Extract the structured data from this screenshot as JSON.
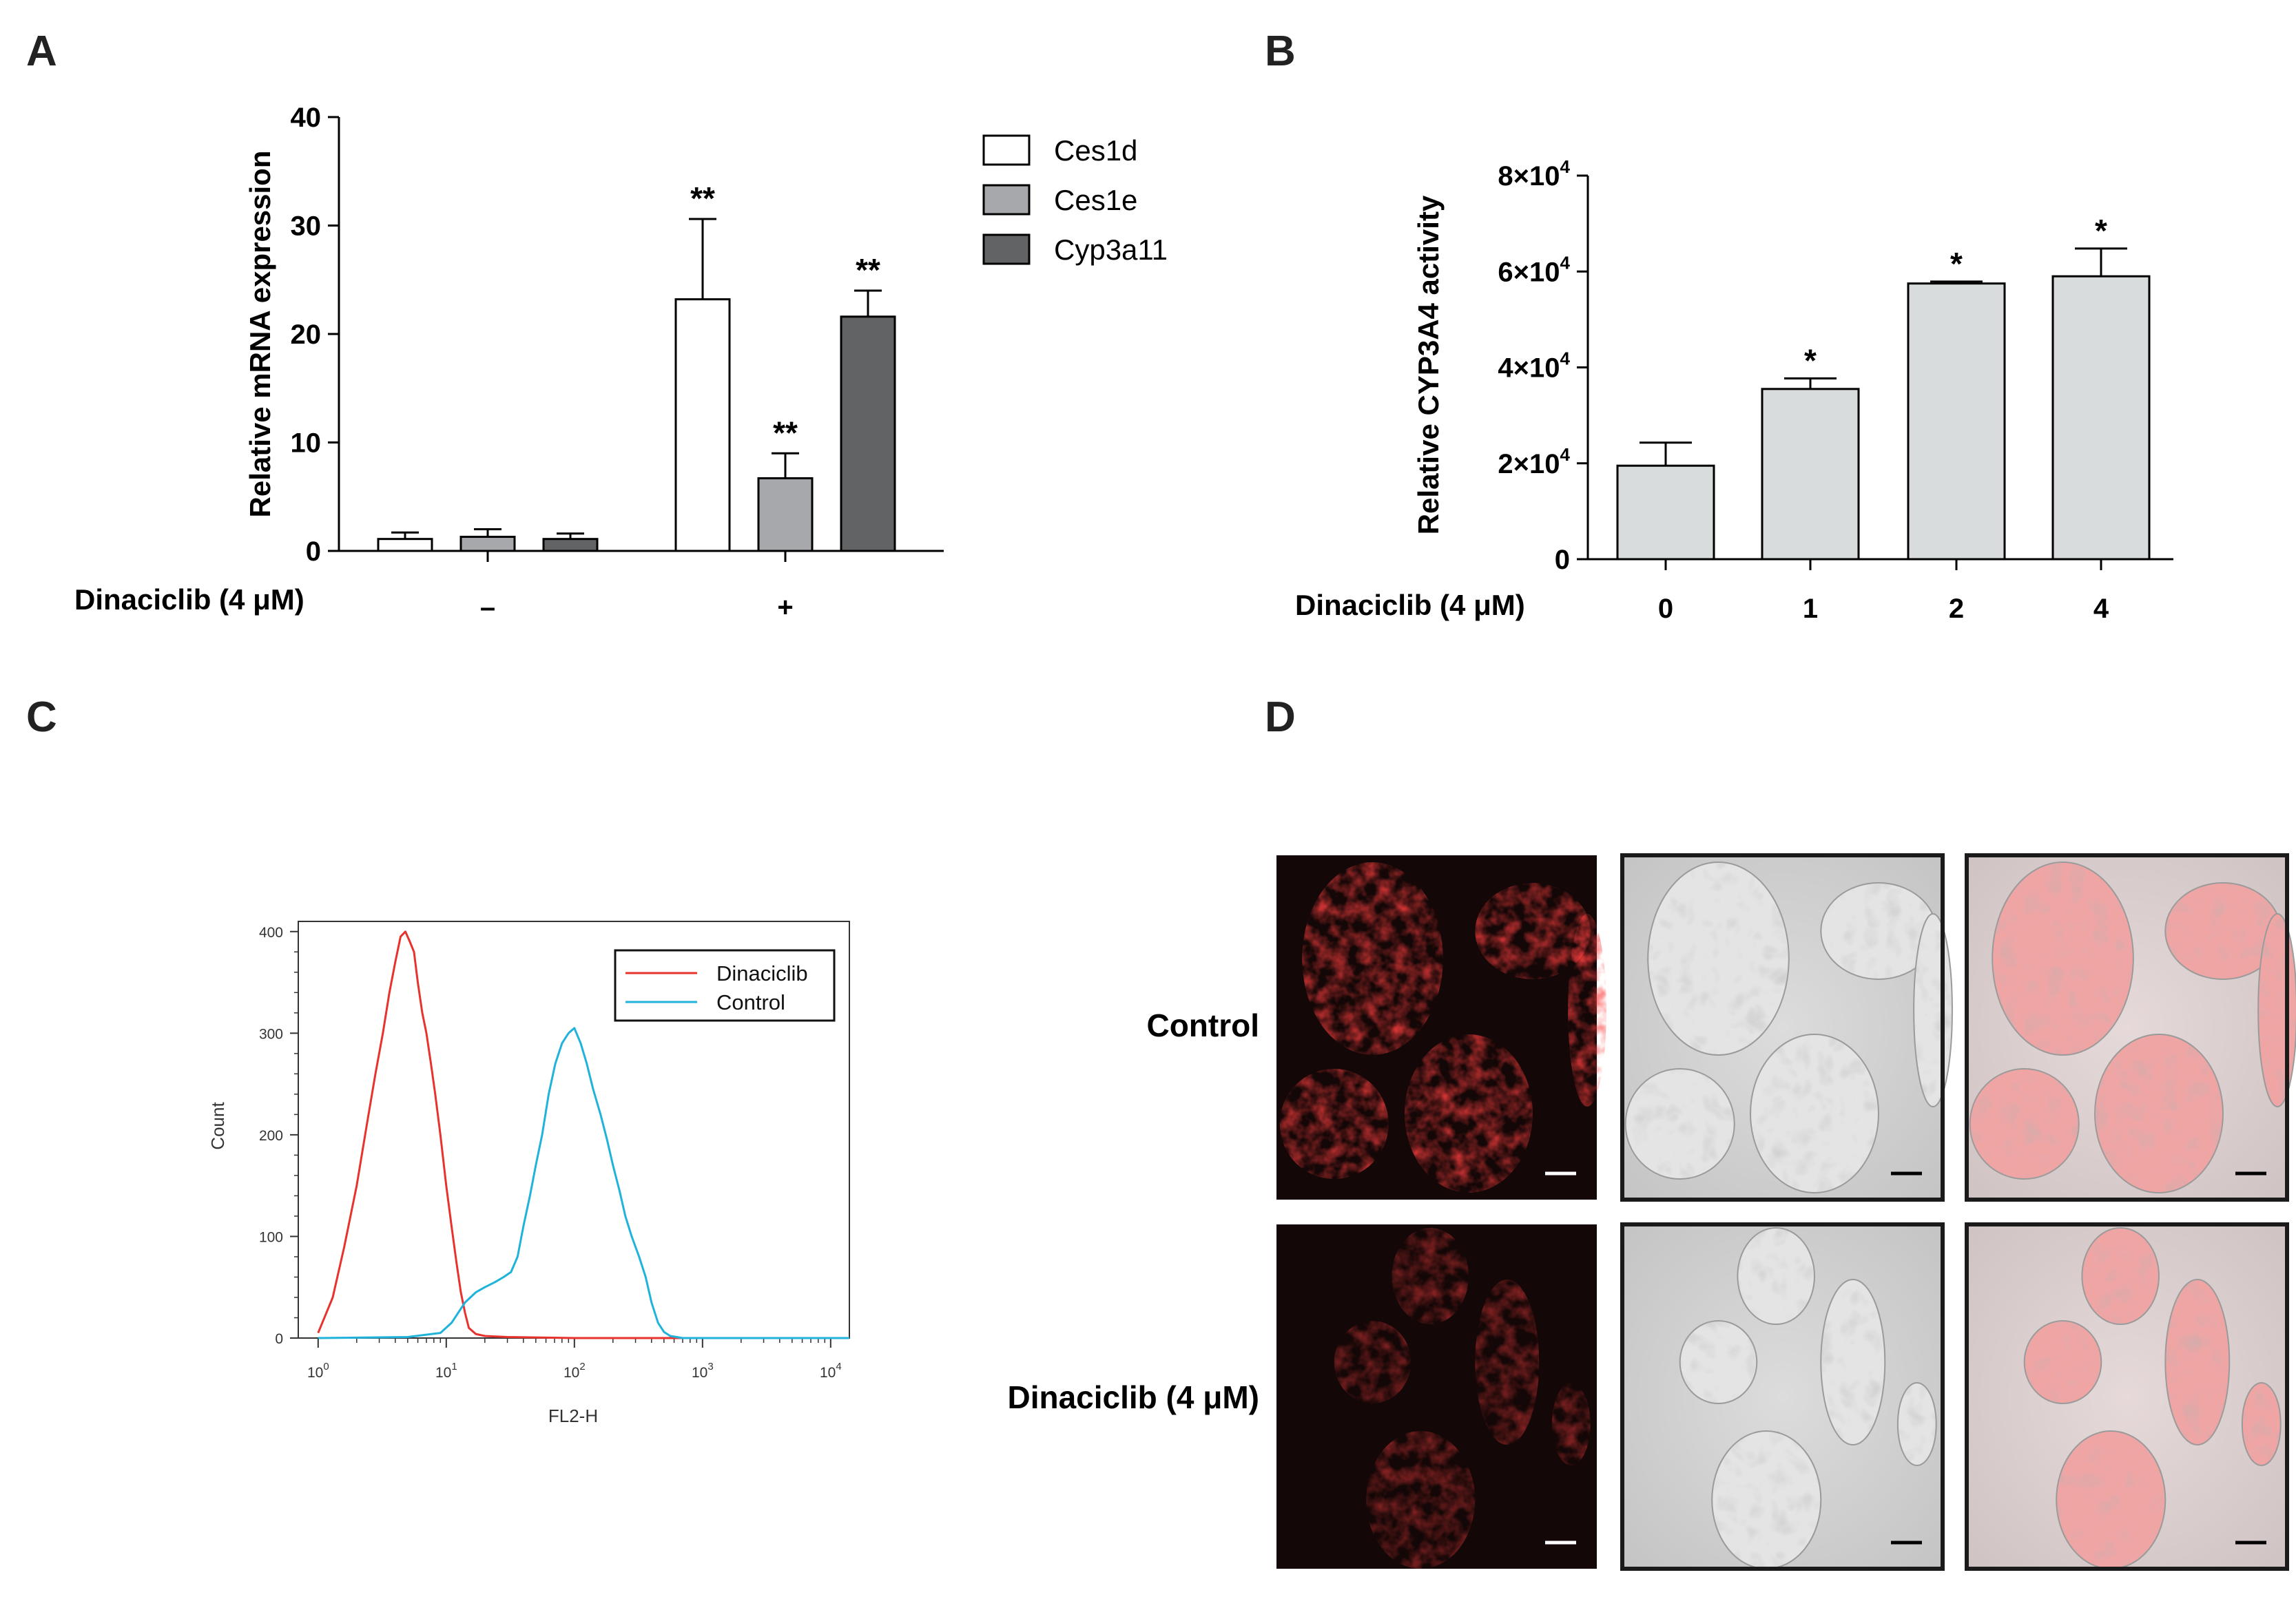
{
  "panel_labels": {
    "A": "A",
    "B": "B",
    "C": "C",
    "D": "D"
  },
  "colors": {
    "ces1d": "#ffffff",
    "ces1e": "#a6a8ab",
    "cyp3a11": "#616365",
    "cyp3a4_bar": "#d9dcdc",
    "dinaciclib_line": "#e8322e",
    "control_line": "#1fb3dc"
  },
  "chart_data": [
    {
      "id": "A",
      "type": "bar",
      "title": "",
      "ylabel": "Relative mRNA expression",
      "xlabel": "Dinaciclib (4 μM)",
      "ylim": [
        0,
        40
      ],
      "yticks": [
        "0",
        "10",
        "20",
        "30",
        "40"
      ],
      "categories": [
        "–",
        "+"
      ],
      "series": [
        {
          "name": "Ces1d",
          "values": [
            1.1,
            23.2
          ],
          "errors": [
            0.6,
            7.4
          ],
          "sig": [
            "",
            "**"
          ]
        },
        {
          "name": "Ces1e",
          "values": [
            1.3,
            6.7
          ],
          "errors": [
            0.7,
            2.3
          ],
          "sig": [
            "",
            "**"
          ]
        },
        {
          "name": "Cyp3a11",
          "values": [
            1.1,
            21.6
          ],
          "errors": [
            0.5,
            2.4
          ],
          "sig": [
            "",
            "**"
          ]
        }
      ],
      "legend": "right"
    },
    {
      "id": "B",
      "type": "bar",
      "title": "",
      "ylabel": "Relative  CYP3A4 activity",
      "xlabel": "Dinaciclib (4 μM)",
      "ylim": [
        0,
        80000
      ],
      "yticks": [
        {
          "v": 0,
          "base": "0",
          "exp": ""
        },
        {
          "v": 20000,
          "base": "2×10",
          "exp": "4"
        },
        {
          "v": 40000,
          "base": "4×10",
          "exp": "4"
        },
        {
          "v": 60000,
          "base": "6×10",
          "exp": "4"
        },
        {
          "v": 80000,
          "base": "8×10",
          "exp": "4"
        }
      ],
      "categories": [
        "0",
        "1",
        "2",
        "4"
      ],
      "values": [
        19500,
        35500,
        57500,
        59000
      ],
      "errors": [
        4800,
        2200,
        400,
        5800
      ],
      "sig": [
        "",
        "*",
        "*",
        "*"
      ]
    },
    {
      "id": "C",
      "type": "line",
      "title": "",
      "xlabel": "FL2-H",
      "ylabel": "Count",
      "xscale": "log",
      "xlim": [
        0.7,
        14000
      ],
      "ylim": [
        0,
        410
      ],
      "xticks": [
        {
          "v": 1,
          "base": "10",
          "exp": "0"
        },
        {
          "v": 10,
          "base": "10",
          "exp": "1"
        },
        {
          "v": 100,
          "base": "10",
          "exp": "2"
        },
        {
          "v": 1000,
          "base": "10",
          "exp": "3"
        },
        {
          "v": 10000,
          "base": "10",
          "exp": "4"
        }
      ],
      "yticks": [
        "0",
        "100",
        "200",
        "300",
        "400"
      ],
      "legend": "top-right",
      "series": [
        {
          "name": "Dinaciclib",
          "x": [
            1.0,
            1.3,
            1.6,
            2.0,
            2.4,
            2.8,
            3.2,
            3.6,
            4.0,
            4.4,
            4.8,
            5.2,
            5.6,
            6.0,
            6.5,
            7.0,
            7.6,
            8.2,
            9.0,
            10,
            11,
            12,
            13,
            14,
            15,
            17,
            20,
            30,
            100,
            1000,
            14000
          ],
          "y": [
            5,
            40,
            90,
            150,
            210,
            260,
            300,
            340,
            370,
            395,
            400,
            390,
            380,
            350,
            320,
            300,
            270,
            240,
            200,
            150,
            110,
            75,
            45,
            25,
            10,
            4,
            2,
            1,
            0,
            0,
            0
          ]
        },
        {
          "name": "Control",
          "x": [
            1,
            5,
            9,
            11,
            14,
            17,
            20,
            24,
            28,
            32,
            36,
            40,
            45,
            50,
            56,
            63,
            71,
            80,
            90,
            100,
            112,
            125,
            140,
            160,
            180,
            200,
            225,
            250,
            280,
            320,
            360,
            400,
            450,
            500,
            560,
            630,
            700,
            1000,
            14000
          ],
          "y": [
            0,
            1,
            5,
            15,
            35,
            45,
            50,
            55,
            60,
            65,
            80,
            110,
            140,
            170,
            200,
            240,
            270,
            290,
            300,
            305,
            290,
            270,
            245,
            220,
            195,
            170,
            145,
            120,
            100,
            80,
            60,
            35,
            15,
            6,
            2,
            1,
            0,
            0,
            0
          ]
        }
      ]
    }
  ],
  "panel_D": {
    "row_labels": [
      "Control",
      "Dinaciclib (4 μM)"
    ],
    "image_names": [
      "fluorescence",
      "brightfield",
      "merge"
    ]
  }
}
